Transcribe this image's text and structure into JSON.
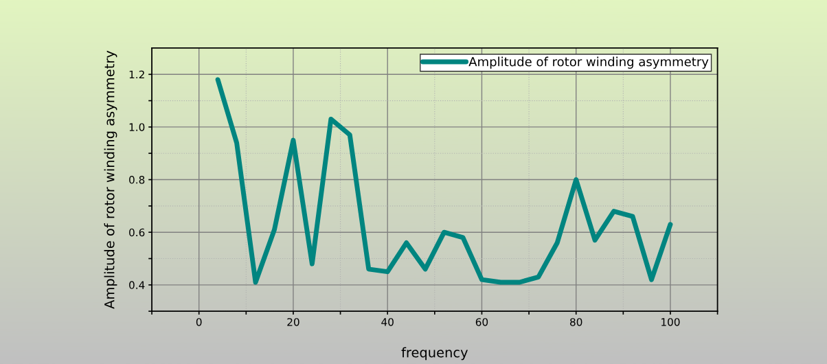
{
  "chart_data": {
    "type": "line",
    "xlabel": "frequency",
    "ylabel": "Amplitude of rotor winding asymmetry",
    "x": [
      4,
      8,
      12,
      16,
      20,
      24,
      28,
      32,
      36,
      40,
      44,
      48,
      52,
      56,
      60,
      64,
      68,
      72,
      76,
      80,
      84,
      88,
      92,
      96,
      100
    ],
    "series": [
      {
        "name": "Amplitude of rotor winding asymmetry",
        "color": "#008580",
        "values": [
          1.18,
          0.94,
          0.41,
          0.61,
          0.95,
          0.48,
          1.03,
          0.97,
          0.46,
          0.45,
          0.56,
          0.46,
          0.6,
          0.58,
          0.42,
          0.41,
          0.41,
          0.43,
          0.56,
          0.8,
          0.57,
          0.68,
          0.66,
          0.42,
          0.63
        ]
      }
    ],
    "xlim": [
      -10,
      110
    ],
    "ylim": [
      0.3,
      1.3
    ],
    "xticks": [
      {
        "value": -10,
        "label": null
      },
      0,
      {
        "value": 10,
        "label": null
      },
      20,
      {
        "value": 30,
        "label": null
      },
      40,
      {
        "value": 50,
        "label": null
      },
      60,
      {
        "value": 70,
        "label": null
      },
      80,
      {
        "value": 90,
        "label": null
      },
      100,
      {
        "value": 110,
        "label": null
      }
    ],
    "yticks": [
      {
        "value": 0.3,
        "label": null
      },
      {
        "value": 0.4,
        "label": "0.4"
      },
      {
        "value": 0.5,
        "label": null
      },
      {
        "value": 0.6,
        "label": "0.6"
      },
      {
        "value": 0.7,
        "label": null
      },
      {
        "value": 0.8,
        "label": "0.8"
      },
      {
        "value": 0.9,
        "label": null
      },
      {
        "value": 1.0,
        "label": "1.0"
      },
      {
        "value": 1.1,
        "label": null
      },
      {
        "value": 1.2,
        "label": "1.2"
      }
    ],
    "grid": true,
    "legend": "top right",
    "marker": "none",
    "line_style": "solid"
  }
}
